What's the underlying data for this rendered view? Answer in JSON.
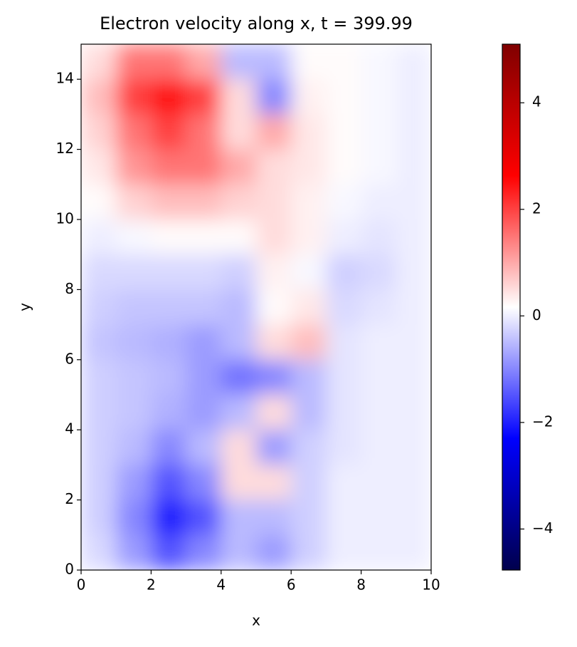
{
  "chart_data": {
    "type": "heatmap",
    "title": "Electron velocity along x, t = 399.99",
    "xlabel": "x",
    "ylabel": "y",
    "xlim": [
      0,
      10
    ],
    "ylim": [
      0,
      15
    ],
    "xticks": [
      0,
      2,
      4,
      6,
      8,
      10
    ],
    "yticks": [
      0,
      2,
      4,
      6,
      8,
      10,
      12,
      14
    ],
    "cmap": "seismic",
    "x": [
      0.5,
      1.5,
      2.5,
      3.5,
      4.5,
      5.5,
      6.5,
      7.5,
      8.5,
      9.5
    ],
    "y": [
      14.5,
      13.5,
      12.5,
      11.5,
      10.5,
      9.5,
      8.5,
      7.5,
      6.5,
      5.5,
      4.5,
      3.5,
      2.5,
      1.5,
      0.5
    ],
    "z": [
      [
        0.5,
        1.5,
        1.5,
        1,
        -0.5,
        -0.5,
        0.2,
        0.2,
        0.1,
        0
      ],
      [
        0.8,
        2,
        2.5,
        2,
        0.5,
        -1,
        0.3,
        0.2,
        0.1,
        0
      ],
      [
        0.6,
        1.5,
        2,
        1.5,
        0.5,
        1,
        0.4,
        0.2,
        0.1,
        0
      ],
      [
        0.4,
        1.2,
        1.5,
        1.5,
        1,
        0.5,
        0.4,
        0.2,
        0.1,
        0
      ],
      [
        0.2,
        0.6,
        0.8,
        0.8,
        0.6,
        0.5,
        0.3,
        0.1,
        0,
        0
      ],
      [
        0,
        0.1,
        0.2,
        0.2,
        0.2,
        0.5,
        0.3,
        0,
        -0.1,
        0
      ],
      [
        -0.2,
        -0.2,
        -0.2,
        -0.2,
        -0.3,
        0.3,
        0.1,
        -0.3,
        -0.2,
        0
      ],
      [
        -0.3,
        -0.4,
        -0.4,
        -0.4,
        -0.5,
        0.2,
        0.4,
        -0.2,
        -0.1,
        0
      ],
      [
        -0.4,
        -0.5,
        -0.6,
        -0.8,
        -0.5,
        0.5,
        0.8,
        -0.1,
        0,
        0
      ],
      [
        -0.3,
        -0.4,
        -0.5,
        -0.8,
        -1.2,
        -1,
        -0.5,
        -0.1,
        0,
        0
      ],
      [
        -0.3,
        -0.4,
        -0.6,
        -0.8,
        -0.5,
        0.5,
        -0.5,
        -0.1,
        0,
        0
      ],
      [
        -0.3,
        -0.5,
        -1,
        -0.5,
        0.5,
        -0.8,
        -0.3,
        -0.1,
        0,
        0
      ],
      [
        -0.3,
        -0.8,
        -1.5,
        -1,
        0.5,
        0.5,
        -0.3,
        0,
        0,
        0
      ],
      [
        -0.3,
        -1,
        -2,
        -1.5,
        -0.5,
        -0.5,
        -0.3,
        0,
        0,
        0
      ],
      [
        -0.2,
        -0.8,
        -1.5,
        -1,
        -0.5,
        -0.8,
        -0.3,
        0,
        0,
        0
      ]
    ],
    "colorbar": {
      "lim": [
        -4.77,
        5.1
      ],
      "ticks": [
        {
          "value": -4,
          "label": "−4"
        },
        {
          "value": -2,
          "label": "−2"
        },
        0,
        2,
        4
      ]
    }
  }
}
